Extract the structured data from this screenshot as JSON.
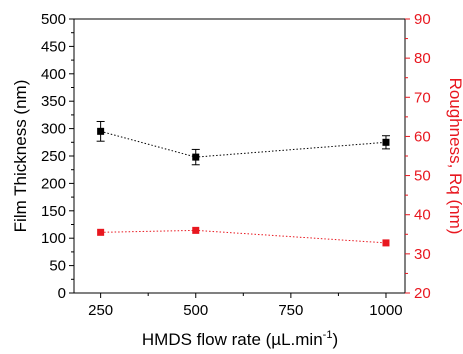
{
  "chart_data": {
    "type": "scatter",
    "x": [
      250,
      500,
      1000
    ],
    "x_ticks": [
      "250",
      "500",
      "750",
      "1000"
    ],
    "xlim": [
      180,
      1050
    ],
    "xlabel": "HMDS flow rate (µL.min",
    "xlabel_sup": "-1",
    "xlabel_end": ")",
    "grid": false,
    "series": [
      {
        "name": "",
        "axis": "left",
        "color": "#000000",
        "marker": "square",
        "line": "dotted",
        "values": [
          295,
          248,
          275
        ],
        "error": [
          18,
          14,
          12
        ]
      },
      {
        "name": "",
        "axis": "right",
        "color": "#e8171f",
        "marker": "square",
        "line": "dotted",
        "values": [
          35.5,
          36.0,
          32.8
        ]
      }
    ],
    "y_left": {
      "label": "Film Thickness (nm)",
      "ylim": [
        0,
        500
      ],
      "ticks": [
        "0",
        "50",
        "100",
        "150",
        "200",
        "250",
        "300",
        "350",
        "400",
        "450",
        "500"
      ],
      "color": "#000000"
    },
    "y_right": {
      "label": "Roughness, Rq (nm)",
      "ylim": [
        20,
        90
      ],
      "ticks": [
        "20",
        "30",
        "40",
        "50",
        "60",
        "70",
        "80",
        "90"
      ],
      "color": "#e8171f"
    }
  }
}
